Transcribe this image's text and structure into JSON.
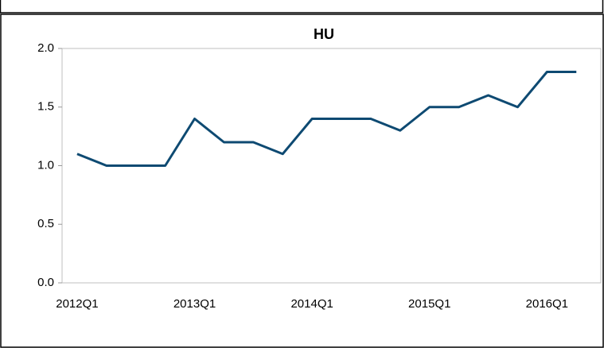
{
  "chart_data": {
    "type": "line",
    "title": "HU",
    "categories": [
      "2012Q1",
      null,
      null,
      null,
      "2013Q1",
      null,
      null,
      null,
      "2014Q1",
      null,
      null,
      null,
      "2015Q1",
      null,
      null,
      null,
      "2016Q1",
      null
    ],
    "series": [
      {
        "color": "#0e4a72",
        "values": [
          1.1,
          1.0,
          1.0,
          1.0,
          1.4,
          1.2,
          1.2,
          1.1,
          1.4,
          1.4,
          1.4,
          1.3,
          1.5,
          1.5,
          1.6,
          1.5,
          1.8,
          1.8
        ]
      }
    ],
    "ylim": [
      0,
      2
    ],
    "yticks": [
      {
        "value": 0,
        "label": "0.0"
      },
      {
        "value": 0.5,
        "label": "0.5"
      },
      {
        "value": 1,
        "label": "1.0"
      },
      {
        "value": 1.5,
        "label": "1.5"
      },
      {
        "value": 2,
        "label": "2.0"
      }
    ],
    "grid": false
  }
}
